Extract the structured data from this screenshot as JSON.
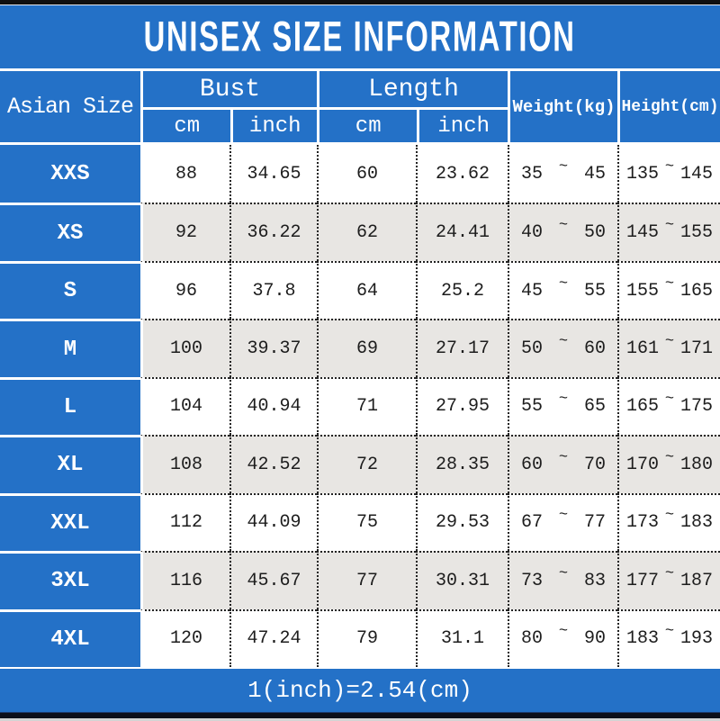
{
  "title": "UNISEX SIZE INFORMATION",
  "footer_note": "1(inch)=2.54(cm)",
  "colors": {
    "blue": "#2471c7",
    "row_alt_gray": "#e8e6e3",
    "data_text": "#1d1d1d",
    "header_text": "#ffffff"
  },
  "table": {
    "label_header": "Asian Size",
    "groups": [
      {
        "label": "Bust",
        "sub": [
          "cm",
          "inch"
        ]
      },
      {
        "label": "Length",
        "sub": [
          "cm",
          "inch"
        ]
      }
    ],
    "single_headers": [
      "Weight(kg)",
      "Height(cm)"
    ],
    "range_separator": "~",
    "rows": [
      {
        "size": "XXS",
        "bust_cm": "88",
        "bust_inch": "34.65",
        "length_cm": "60",
        "length_inch": "23.62",
        "weight_min": "35",
        "weight_max": "45",
        "height_min": "135",
        "height_max": "145"
      },
      {
        "size": "XS",
        "bust_cm": "92",
        "bust_inch": "36.22",
        "length_cm": "62",
        "length_inch": "24.41",
        "weight_min": "40",
        "weight_max": "50",
        "height_min": "145",
        "height_max": "155"
      },
      {
        "size": "S",
        "bust_cm": "96",
        "bust_inch": "37.8",
        "length_cm": "64",
        "length_inch": "25.2",
        "weight_min": "45",
        "weight_max": "55",
        "height_min": "155",
        "height_max": "165"
      },
      {
        "size": "M",
        "bust_cm": "100",
        "bust_inch": "39.37",
        "length_cm": "69",
        "length_inch": "27.17",
        "weight_min": "50",
        "weight_max": "60",
        "height_min": "161",
        "height_max": "171"
      },
      {
        "size": "L",
        "bust_cm": "104",
        "bust_inch": "40.94",
        "length_cm": "71",
        "length_inch": "27.95",
        "weight_min": "55",
        "weight_max": "65",
        "height_min": "165",
        "height_max": "175"
      },
      {
        "size": "XL",
        "bust_cm": "108",
        "bust_inch": "42.52",
        "length_cm": "72",
        "length_inch": "28.35",
        "weight_min": "60",
        "weight_max": "70",
        "height_min": "170",
        "height_max": "180"
      },
      {
        "size": "XXL",
        "bust_cm": "112",
        "bust_inch": "44.09",
        "length_cm": "75",
        "length_inch": "29.53",
        "weight_min": "67",
        "weight_max": "77",
        "height_min": "173",
        "height_max": "183"
      },
      {
        "size": "3XL",
        "bust_cm": "116",
        "bust_inch": "45.67",
        "length_cm": "77",
        "length_inch": "30.31",
        "weight_min": "73",
        "weight_max": "83",
        "height_min": "177",
        "height_max": "187"
      },
      {
        "size": "4XL",
        "bust_cm": "120",
        "bust_inch": "47.24",
        "length_cm": "79",
        "length_inch": "31.1",
        "weight_min": "80",
        "weight_max": "90",
        "height_min": "183",
        "height_max": "193"
      }
    ]
  },
  "chart_data": {
    "type": "table",
    "title": "UNISEX SIZE INFORMATION",
    "note": "1(inch)=2.54(cm)",
    "columns": [
      "Asian Size",
      "Bust cm",
      "Bust inch",
      "Length cm",
      "Length inch",
      "Weight(kg)",
      "Height(cm)"
    ],
    "rows": [
      [
        "XXS",
        88,
        34.65,
        60,
        23.62,
        "35~45",
        "135~145"
      ],
      [
        "XS",
        92,
        36.22,
        62,
        24.41,
        "40~50",
        "145~155"
      ],
      [
        "S",
        96,
        37.8,
        64,
        25.2,
        "45~55",
        "155~165"
      ],
      [
        "M",
        100,
        39.37,
        69,
        27.17,
        "50~60",
        "161~171"
      ],
      [
        "L",
        104,
        40.94,
        71,
        27.95,
        "55~65",
        "165~175"
      ],
      [
        "XL",
        108,
        42.52,
        72,
        28.35,
        "60~70",
        "170~180"
      ],
      [
        "XXL",
        112,
        44.09,
        75,
        29.53,
        "67~77",
        "173~183"
      ],
      [
        "3XL",
        116,
        45.67,
        77,
        30.31,
        "73~83",
        "177~187"
      ],
      [
        "4XL",
        120,
        47.24,
        79,
        31.1,
        "80~90",
        "183~193"
      ]
    ]
  }
}
